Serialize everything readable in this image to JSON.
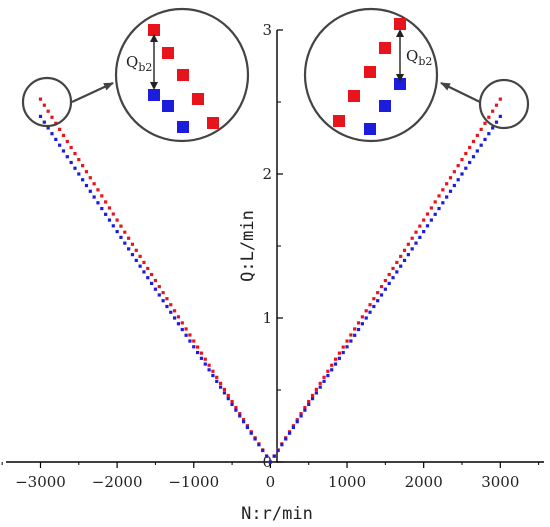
{
  "chart_data": {
    "type": "scatter",
    "xlabel": "N:r/min",
    "ylabel": "Q:L/min",
    "xlim": [
      -3450,
      3570
    ],
    "ylim": [
      -0.05,
      3.0
    ],
    "x_ticks": [
      -3000,
      -2000,
      -1000,
      0,
      1000,
      2000,
      3000
    ],
    "x_tick_labels": [
      "−3000",
      "−2000",
      "−1000",
      "0",
      "1000",
      "2000",
      "3000"
    ],
    "y_ticks": [
      0,
      1,
      2,
      3
    ],
    "y_tick_labels": [
      "0",
      "1",
      "2",
      "3"
    ],
    "x_range": [
      -3000,
      3000
    ],
    "x_step": 50,
    "series": [
      {
        "color": "#e8141c",
        "slope": 0.00084
      },
      {
        "color": "#1c1cdc",
        "slope": 0.0008
      }
    ],
    "annotation_label": "Q",
    "annotation_subscript": "b2",
    "colors": {
      "axis": "#000000",
      "zoom_circle": "#444444",
      "arrow": "#444444"
    }
  }
}
